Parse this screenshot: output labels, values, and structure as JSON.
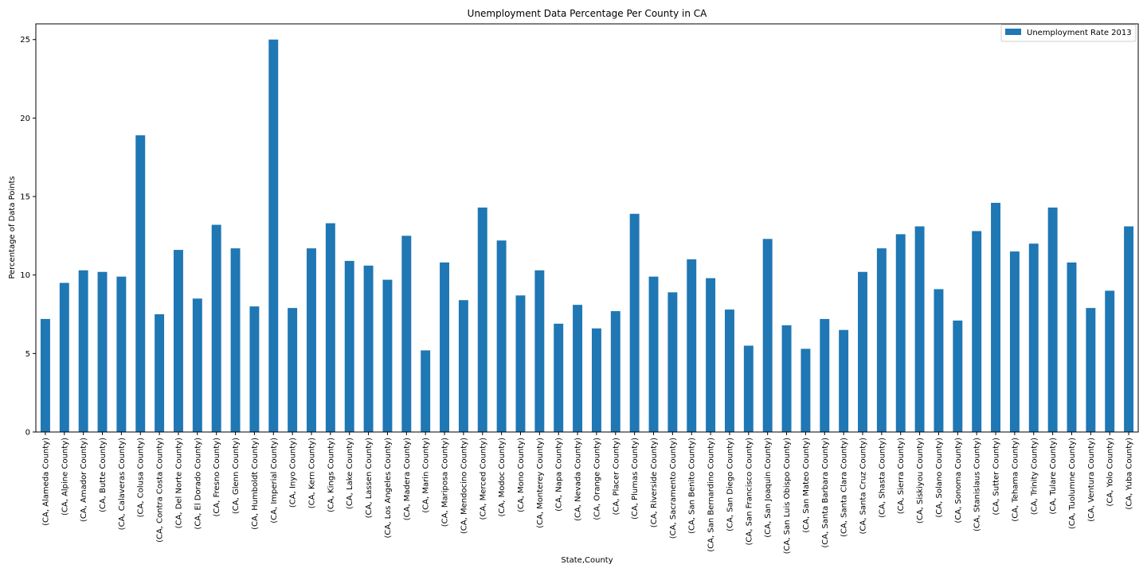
{
  "chart_data": {
    "type": "bar",
    "title": "Unemployment Data Percentage Per County in CA",
    "xlabel": "State,County",
    "ylabel": "Percentage of Data Points",
    "ylim": [
      0,
      26
    ],
    "yticks": [
      0,
      5,
      10,
      15,
      20,
      25
    ],
    "grid": false,
    "legend_position": "top-right",
    "bar_color": "#1f77b4",
    "categories": [
      "(CA, Alameda County)",
      "(CA, Alpine County)",
      "(CA, Amador County)",
      "(CA, Butte County)",
      "(CA, Calaveras County)",
      "(CA, Colusa County)",
      "(CA, Contra Costa County)",
      "(CA, Del Norte County)",
      "(CA, El Dorado County)",
      "(CA, Fresno County)",
      "(CA, Glenn County)",
      "(CA, Humboldt County)",
      "(CA, Imperial County)",
      "(CA, Inyo County)",
      "(CA, Kern County)",
      "(CA, Kings County)",
      "(CA, Lake County)",
      "(CA, Lassen County)",
      "(CA, Los Angeles County)",
      "(CA, Madera County)",
      "(CA, Marin County)",
      "(CA, Mariposa County)",
      "(CA, Mendocino County)",
      "(CA, Merced County)",
      "(CA, Modoc County)",
      "(CA, Mono County)",
      "(CA, Monterey County)",
      "(CA, Napa County)",
      "(CA, Nevada County)",
      "(CA, Orange County)",
      "(CA, Placer County)",
      "(CA, Plumas County)",
      "(CA, Riverside County)",
      "(CA, Sacramento County)",
      "(CA, San Benito County)",
      "(CA, San Bernardino County)",
      "(CA, San Diego County)",
      "(CA, San Francisco County)",
      "(CA, San Joaquin County)",
      "(CA, San Luis Obispo County)",
      "(CA, San Mateo County)",
      "(CA, Santa Barbara County)",
      "(CA, Santa Clara County)",
      "(CA, Santa Cruz County)",
      "(CA, Shasta County)",
      "(CA, Sierra County)",
      "(CA, Siskiyou County)",
      "(CA, Solano County)",
      "(CA, Sonoma County)",
      "(CA, Stanislaus County)",
      "(CA, Sutter County)",
      "(CA, Tehama County)",
      "(CA, Trinity County)",
      "(CA, Tulare County)",
      "(CA, Tuolumne County)",
      "(CA, Ventura County)",
      "(CA, Yolo County)",
      "(CA, Yuba County)"
    ],
    "series": [
      {
        "name": "Unemployment Rate 2013",
        "values": [
          7.2,
          9.5,
          10.3,
          10.2,
          9.9,
          18.9,
          7.5,
          11.6,
          8.5,
          13.2,
          11.7,
          8.0,
          25.0,
          7.9,
          11.7,
          13.3,
          10.9,
          10.6,
          9.7,
          12.5,
          5.2,
          10.8,
          8.4,
          14.3,
          12.2,
          8.7,
          10.3,
          6.9,
          8.1,
          6.6,
          7.7,
          13.9,
          9.9,
          8.9,
          11.0,
          9.8,
          7.8,
          5.5,
          12.3,
          6.8,
          5.3,
          7.2,
          6.5,
          10.2,
          11.7,
          12.6,
          13.1,
          9.1,
          7.1,
          12.8,
          14.6,
          11.5,
          12.0,
          14.3,
          10.8,
          7.9,
          9.0,
          13.1
        ]
      }
    ]
  }
}
